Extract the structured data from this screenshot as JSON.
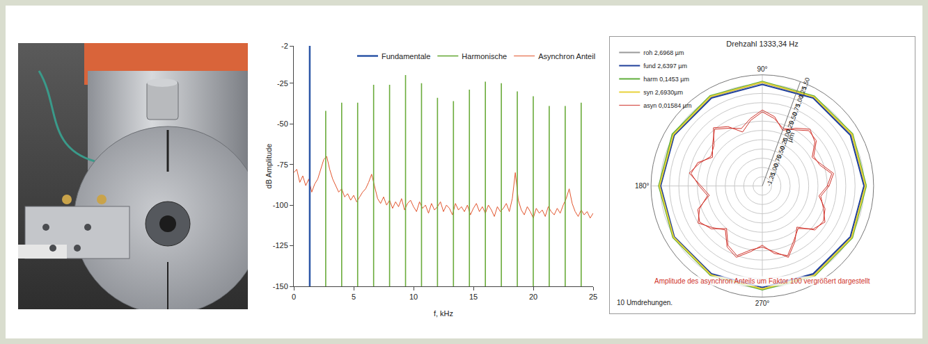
{
  "chart_data": [
    {
      "type": "line",
      "x_label": "f, kHz",
      "y_label": "dB Amplitude",
      "xlim": [
        0,
        25
      ],
      "xticks": [
        0,
        5,
        10,
        15,
        20,
        25
      ],
      "ylim": [
        -150,
        -2
      ],
      "yticks": [
        -2,
        -25,
        -50,
        -75,
        -100,
        -125,
        -150
      ],
      "grid": false,
      "legend": "top",
      "series": [
        {
          "name": "Fundamentale",
          "color": "#2b55a6",
          "type": "stem",
          "x": [
            1.333
          ],
          "values": [
            -2
          ]
        },
        {
          "name": "Harmonische",
          "color": "#6aab3a",
          "type": "stem",
          "x": [
            2.667,
            4.0,
            5.333,
            6.667,
            8.0,
            9.333,
            10.667,
            12.0,
            13.333,
            14.667,
            16.0,
            17.333,
            18.667,
            20.0,
            21.333,
            22.667,
            24.0
          ],
          "values": [
            -42,
            -37,
            -37,
            -26,
            -26,
            -20,
            -25,
            -34,
            -36,
            -29,
            -24,
            -25,
            -30,
            -33,
            -39,
            -39,
            -37
          ]
        },
        {
          "name": "Asynchron Anteil",
          "color": "#e2552d",
          "type": "line",
          "x": [
            0,
            0.25,
            0.5,
            0.75,
            1,
            1.25,
            1.5,
            1.75,
            2,
            2.25,
            2.5,
            2.75,
            3,
            3.25,
            3.5,
            3.75,
            4,
            4.25,
            4.5,
            4.75,
            5,
            5.25,
            5.5,
            5.75,
            6,
            6.25,
            6.5,
            6.75,
            7,
            7.25,
            7.5,
            7.75,
            8,
            8.25,
            8.5,
            8.75,
            9,
            9.25,
            9.5,
            9.75,
            10,
            10.25,
            10.5,
            10.75,
            11,
            11.25,
            11.5,
            11.75,
            12,
            12.25,
            12.5,
            12.75,
            13,
            13.25,
            13.5,
            13.75,
            14,
            14.25,
            14.5,
            14.75,
            15,
            15.25,
            15.5,
            15.75,
            16,
            16.25,
            16.5,
            16.75,
            17,
            17.25,
            17.5,
            17.75,
            18,
            18.25,
            18.5,
            18.75,
            19,
            19.25,
            19.5,
            19.75,
            20,
            20.25,
            20.5,
            20.75,
            21,
            21.25,
            21.5,
            21.75,
            22,
            22.25,
            22.5,
            22.75,
            23,
            23.25,
            23.5,
            23.75,
            24,
            24.25,
            24.5,
            24.75,
            25
          ],
          "values": [
            -80,
            -78,
            -86,
            -82,
            -88,
            -84,
            -92,
            -87,
            -84,
            -78,
            -72,
            -70,
            -78,
            -84,
            -88,
            -92,
            -90,
            -95,
            -93,
            -97,
            -94,
            -98,
            -95,
            -92,
            -90,
            -86,
            -81,
            -88,
            -96,
            -99,
            -95,
            -100,
            -97,
            -102,
            -98,
            -101,
            -96,
            -103,
            -99,
            -97,
            -101,
            -104,
            -98,
            -102,
            -100,
            -105,
            -99,
            -103,
            -101,
            -98,
            -104,
            -100,
            -102,
            -106,
            -99,
            -103,
            -101,
            -104,
            -100,
            -106,
            -102,
            -99,
            -104,
            -101,
            -105,
            -100,
            -103,
            -107,
            -101,
            -104,
            -102,
            -99,
            -104,
            -96,
            -80,
            -97,
            -103,
            -106,
            -101,
            -104,
            -108,
            -102,
            -105,
            -103,
            -107,
            -101,
            -104,
            -106,
            -102,
            -105,
            -100,
            -96,
            -90,
            -99,
            -104,
            -107,
            -103,
            -106,
            -104,
            -108,
            -105
          ]
        }
      ]
    },
    {
      "type": "polar",
      "title": "Drehzahl 1333,34 Hz",
      "y_label": "µm",
      "ylim": [
        -1.5,
        1.5
      ],
      "yticks": [
        {
          "value": 1.5,
          "label": "1,50"
        },
        {
          "value": 1.25,
          "label": "1,25"
        },
        {
          "value": 1.0,
          "label": "1,00"
        },
        {
          "value": 0.75,
          "label": "0,75"
        },
        {
          "value": 0.5,
          "label": "0,50"
        },
        {
          "value": 0.25,
          "label": "0,25"
        },
        {
          "value": 0,
          "label": "0,00"
        },
        {
          "value": -0.25,
          "label": "-0,25"
        },
        {
          "value": -0.5,
          "label": "-0,50"
        },
        {
          "value": -0.75,
          "label": "-0,75"
        },
        {
          "value": -1.0,
          "label": "-1,00"
        },
        {
          "value": -1.25,
          "label": "-1,25"
        }
      ],
      "xticks": [
        {
          "value": 90,
          "label": "90°"
        },
        {
          "value": 180,
          "label": "180°"
        },
        {
          "value": 270,
          "label": "270°"
        }
      ],
      "grid": true,
      "legend": "top-left",
      "annotations": [
        {
          "text": "Amplitude des asynchron Anteils um Faktor 100 vergrößert dargestellt",
          "color": "#d0342c"
        },
        {
          "text": "10 Umdrehungen."
        }
      ],
      "series": [
        {
          "name": "roh 2,6968 µm",
          "color": "#9a9a9a",
          "theta": [
            0,
            30,
            60,
            90,
            120,
            150,
            180,
            210,
            240,
            270,
            300,
            330,
            360
          ],
          "values": [
            1.27,
            1.28,
            1.26,
            1.29,
            1.27,
            1.25,
            1.28,
            1.26,
            1.27,
            1.29,
            1.26,
            1.28,
            1.27
          ]
        },
        {
          "name": "fund 2,6397 µm",
          "color": "#1f3f9a",
          "theta": [
            0,
            30,
            60,
            90,
            120,
            150,
            180,
            210,
            240,
            270,
            300,
            330,
            360
          ],
          "values": [
            1.24,
            1.24,
            1.24,
            1.24,
            1.24,
            1.24,
            1.24,
            1.24,
            1.24,
            1.24,
            1.24,
            1.24,
            1.24
          ]
        },
        {
          "name": "harm 0,1453 µm",
          "color": "#5fae3a",
          "theta": [
            0,
            30,
            60,
            90,
            120,
            150,
            180,
            210,
            240,
            270,
            300,
            330,
            360
          ],
          "values": [
            1.3,
            1.31,
            1.3,
            1.32,
            1.31,
            1.3,
            1.29,
            1.28,
            1.29,
            1.3,
            1.31,
            1.3,
            1.3
          ]
        },
        {
          "name": "syn 2,6930µm",
          "color": "#e8d23a",
          "theta": [
            0,
            30,
            60,
            90,
            120,
            150,
            180,
            210,
            240,
            270,
            300,
            330,
            360
          ],
          "values": [
            1.28,
            1.29,
            1.28,
            1.3,
            1.29,
            1.27,
            1.27,
            1.26,
            1.27,
            1.28,
            1.29,
            1.28,
            1.28
          ]
        },
        {
          "name": "asyn 0,01584 µm",
          "color": "#d0342c",
          "theta": [
            0,
            10,
            20,
            30,
            40,
            50,
            60,
            70,
            80,
            90,
            100,
            110,
            120,
            130,
            140,
            150,
            160,
            170,
            180,
            190,
            200,
            210,
            220,
            230,
            240,
            250,
            260,
            270,
            280,
            290,
            300,
            310,
            320,
            330,
            340,
            350,
            360,
            0,
            10,
            20,
            30,
            40,
            50,
            60,
            70,
            80,
            90,
            100,
            110,
            120,
            130,
            140,
            150,
            160,
            170,
            180,
            190,
            200,
            210,
            220,
            230,
            240,
            250,
            260,
            270,
            280,
            290,
            300,
            310,
            320,
            330,
            340,
            350,
            360
          ],
          "values": [
            0.3,
            0.45,
            0.2,
            0.05,
            0.35,
            0.5,
            0.3,
            0.1,
            0.4,
            0.55,
            0.35,
            0.15,
            0.3,
            0.5,
            0.25,
            0.05,
            0.35,
            0.45,
            0.2,
            0.0,
            0.3,
            0.5,
            0.25,
            0.05,
            0.4,
            0.55,
            0.3,
            0.1,
            0.35,
            0.5,
            0.2,
            0.0,
            0.3,
            0.45,
            0.25,
            0.1,
            0.3,
            0.25,
            0.4,
            0.15,
            0.1,
            0.4,
            0.45,
            0.25,
            0.15,
            0.35,
            0.5,
            0.3,
            0.05,
            0.35,
            0.55,
            0.2,
            0.1,
            0.3,
            0.5,
            0.15,
            -0.05,
            0.35,
            0.45,
            0.3,
            0.0,
            0.35,
            0.5,
            0.25,
            0.15,
            0.3,
            0.55,
            0.25,
            -0.05,
            0.35,
            0.4,
            0.3,
            0.05,
            0.25
          ]
        }
      ]
    }
  ]
}
